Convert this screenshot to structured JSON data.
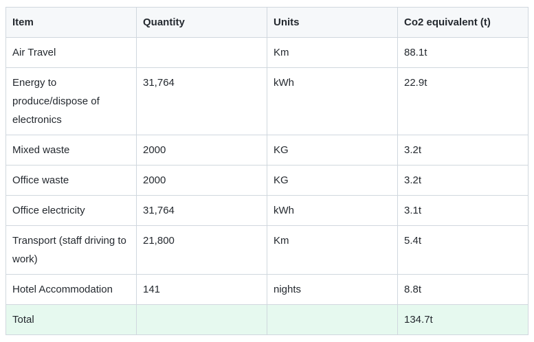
{
  "table": {
    "headers": [
      "Item",
      "Quantity",
      "Units",
      "Co2 equivalent (t)"
    ],
    "rows": [
      {
        "item": "Air Travel",
        "quantity": "",
        "units": "Km",
        "co2": "88.1t"
      },
      {
        "item": "Energy to produce/dispose of electronics",
        "quantity": "31,764",
        "units": "kWh",
        "co2": "22.9t"
      },
      {
        "item": "Mixed waste",
        "quantity": "2000",
        "units": "KG",
        "co2": "3.2t"
      },
      {
        "item": "Office waste",
        "quantity": "2000",
        "units": "KG",
        "co2": "3.2t"
      },
      {
        "item": "Office electricity",
        "quantity": "31,764",
        "units": "kWh",
        "co2": "3.1t"
      },
      {
        "item": "Transport (staff driving to work)",
        "quantity": "21,800",
        "units": "Km",
        "co2": "5.4t"
      },
      {
        "item": "Hotel Accommodation",
        "quantity": "141",
        "units": "nights",
        "co2": "8.8t"
      }
    ],
    "total": {
      "item": "Total",
      "quantity": "",
      "units": "",
      "co2": "134.7t"
    }
  },
  "colors": {
    "border": "#d0d7de",
    "header_bg": "#f6f8fa",
    "total_row_bg": "#e6f9ef",
    "text": "#24292f"
  }
}
